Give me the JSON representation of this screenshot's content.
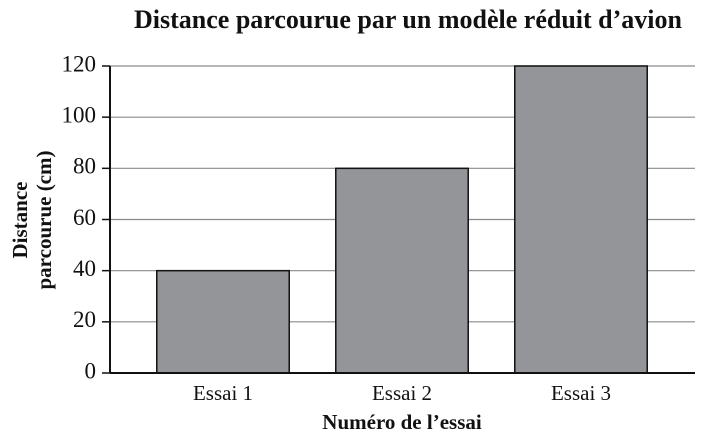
{
  "chart_data": {
    "type": "bar",
    "title": "Distance parcourue par un modèle réduit d’avion",
    "categories": [
      "Essai 1",
      "Essai 2",
      "Essai 3"
    ],
    "values": [
      40,
      80,
      120
    ],
    "color": "#939598",
    "xlabel": "Numéro de l’essai",
    "ylabel": [
      "Distance",
      "parcourue (cm)"
    ],
    "ylim": [
      0,
      120
    ],
    "yticks": [
      0,
      20,
      40,
      60,
      80,
      100,
      120
    ],
    "grid": true
  }
}
